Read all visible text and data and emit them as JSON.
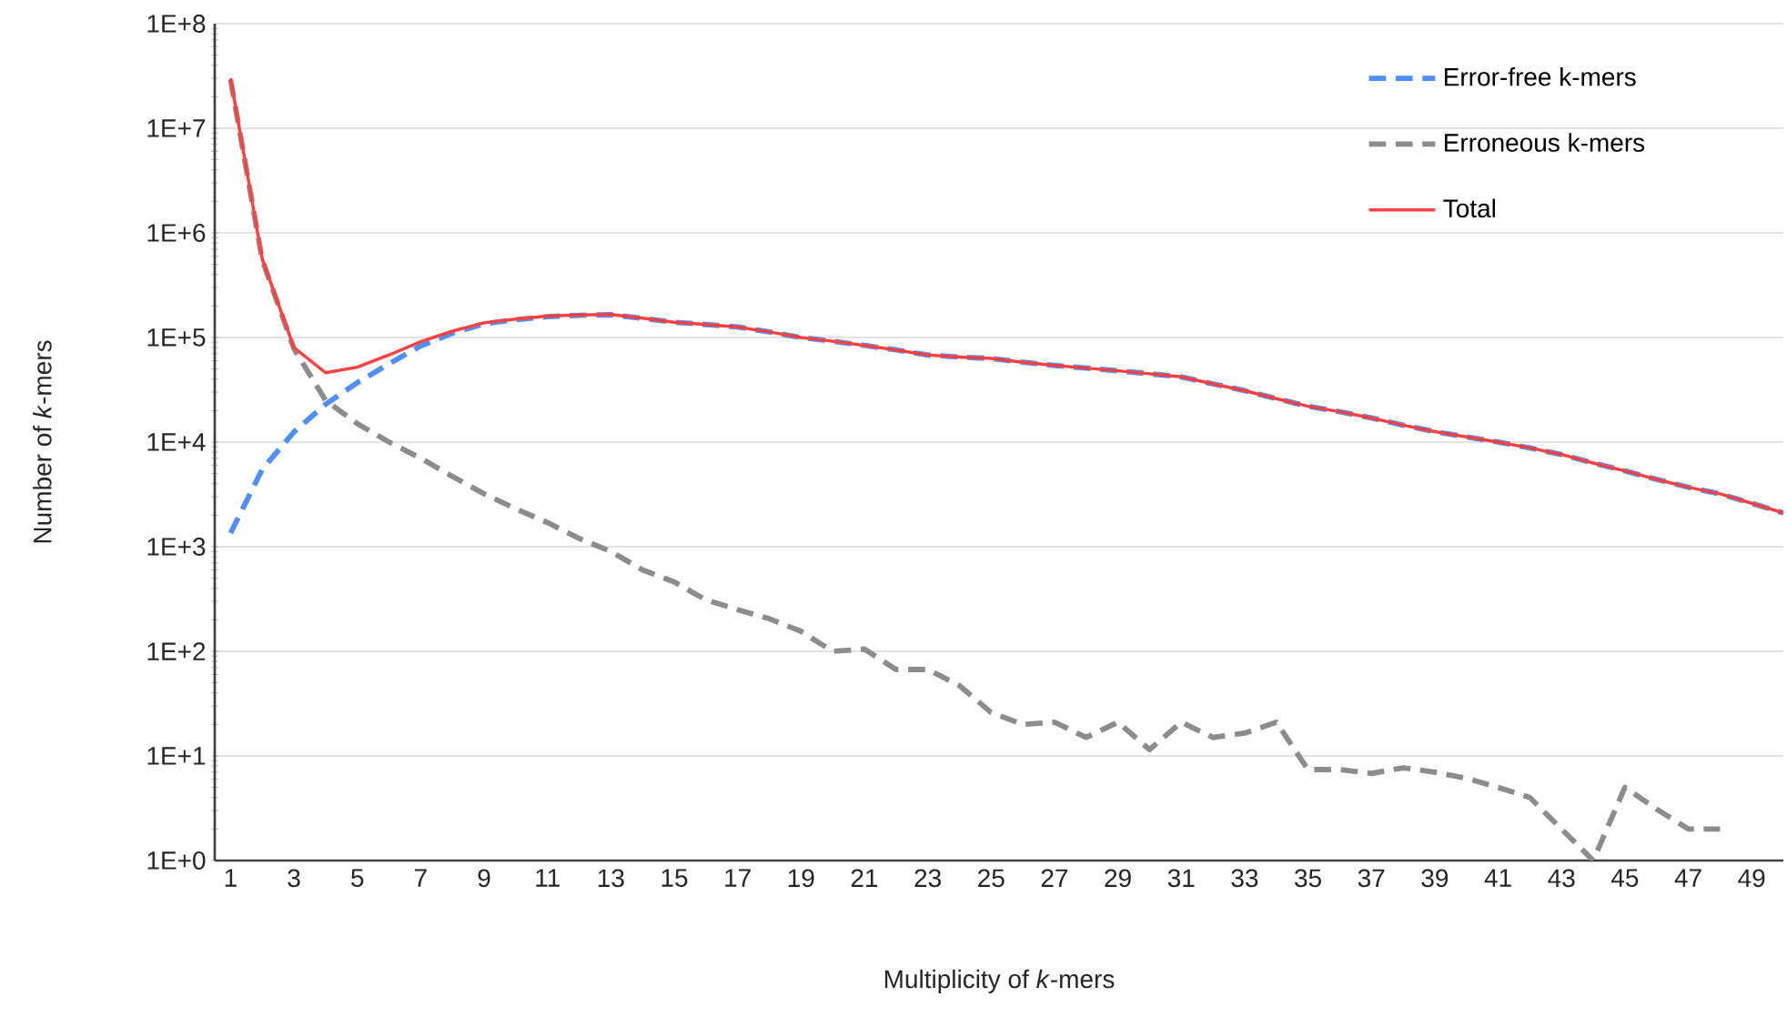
{
  "chart_data": {
    "type": "line",
    "xlabel": "Multiplicity of *k*-mers",
    "ylabel": "Number of *k*-mers",
    "categories": [
      "1",
      null,
      "3",
      null,
      "5",
      null,
      "7",
      null,
      "9",
      null,
      "11",
      null,
      "13",
      null,
      "15",
      null,
      "17",
      null,
      "19",
      null,
      "21",
      null,
      "23",
      null,
      "25",
      null,
      "27",
      null,
      "29",
      null,
      "31",
      null,
      "33",
      null,
      "35",
      null,
      "37",
      null,
      "39",
      null,
      "41",
      null,
      "43",
      null,
      "45",
      null,
      "47",
      null,
      "49",
      null
    ],
    "series": [
      {
        "name": "Error-free k-mers",
        "color": "#4f8ff7",
        "line_style": "dashed",
        "values": [
          1350,
          5500,
          12500,
          23000,
          37000,
          56000,
          83000,
          110000,
          135000,
          148000,
          158000,
          163000,
          165000,
          152000,
          140000,
          133000,
          126000,
          113000,
          100000,
          92000,
          84000,
          76000,
          68000,
          65000,
          63000,
          58000,
          54000,
          51000,
          48000,
          45000,
          42000,
          36000,
          31000,
          26000,
          22000,
          19500,
          17000,
          14500,
          12600,
          11200,
          10000,
          8800,
          7600,
          6300,
          5300,
          4400,
          3700,
          3200,
          2600,
          2100
        ]
      },
      {
        "name": "Erroneous k-mers",
        "color": "#8c8c8c",
        "line_style": "dashed",
        "values": [
          29000000,
          550000,
          78000,
          25000,
          15000,
          10000,
          7000,
          4700,
          3200,
          2300,
          1700,
          1200,
          900,
          600,
          460,
          310,
          250,
          205,
          155,
          100,
          105,
          67,
          67,
          47,
          26,
          20,
          21,
          15,
          21,
          11.5,
          21,
          15,
          16.5,
          21,
          7.4,
          7.4,
          6.8,
          7.7,
          7,
          6.1,
          5,
          4,
          2,
          1,
          5,
          3.1,
          2,
          2,
          null,
          null
        ]
      },
      {
        "name": "Total",
        "color": "#ff4040",
        "line_style": "solid",
        "values": [
          30000000,
          560000,
          80000,
          46000,
          52000,
          68000,
          91000,
          115000,
          138000,
          150000,
          160000,
          164000,
          166000,
          153000,
          140000,
          133000,
          126000,
          113000,
          100000,
          92000,
          84000,
          76000,
          68000,
          65000,
          63000,
          58000,
          54000,
          51000,
          48000,
          45000,
          42000,
          36000,
          31000,
          26000,
          22000,
          19500,
          17000,
          14500,
          12600,
          11200,
          10000,
          8800,
          7600,
          6300,
          5300,
          4400,
          3700,
          3200,
          2600,
          2100
        ]
      }
    ],
    "log": "y",
    "ylim": [
      1,
      100000000
    ],
    "yticks": [
      {
        "value": 1,
        "label": "1E+0"
      },
      {
        "value": 10,
        "label": "1E+1"
      },
      {
        "value": 100,
        "label": "1E+2"
      },
      {
        "value": 1000,
        "label": "1E+3"
      },
      {
        "value": 10000,
        "label": "1E+4"
      },
      {
        "value": 100000,
        "label": "1E+5"
      },
      {
        "value": 1000000,
        "label": "1E+6"
      },
      {
        "value": 10000000,
        "label": "1E+7"
      },
      {
        "value": 100000000,
        "label": "1E+8"
      }
    ],
    "grid": "y",
    "legend": "top right",
    "marker": "none"
  }
}
